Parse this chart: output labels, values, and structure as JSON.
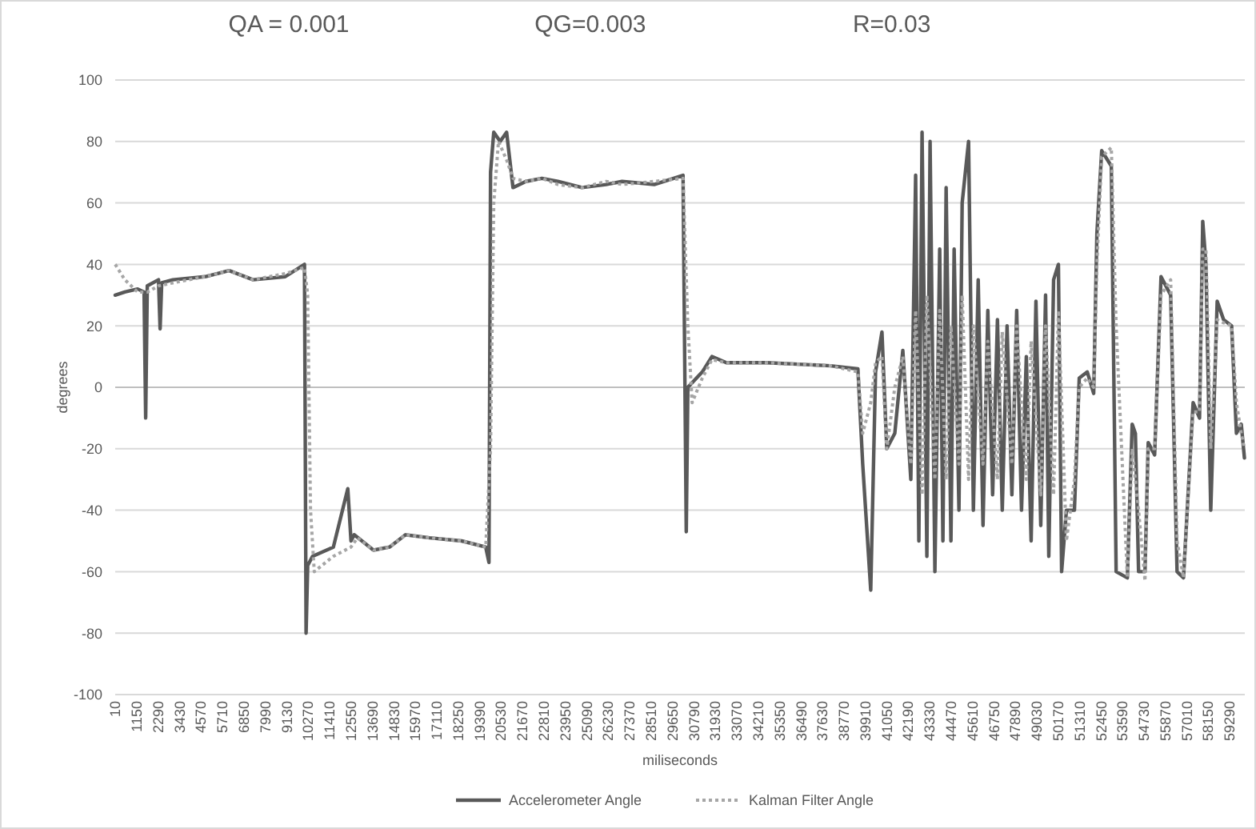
{
  "chart_data": {
    "type": "line",
    "annotations": [
      "QA = 0.001",
      "QG=0.003",
      "R=0.03"
    ],
    "xlabel": "miliseconds",
    "ylabel": "degrees",
    "xlim": [
      10,
      60100
    ],
    "ylim": [
      -100,
      100
    ],
    "xticks": [
      10,
      1150,
      2290,
      3430,
      4570,
      5710,
      6850,
      7990,
      9130,
      10270,
      11410,
      12550,
      13690,
      14830,
      15970,
      17110,
      18250,
      19390,
      20530,
      21670,
      22810,
      23950,
      25090,
      26230,
      27370,
      28510,
      29650,
      30790,
      31930,
      33070,
      34210,
      35350,
      36490,
      37630,
      38770,
      39910,
      41050,
      42190,
      43330,
      44470,
      45610,
      46750,
      47890,
      49030,
      50170,
      51310,
      52450,
      53590,
      54730,
      55870,
      57010,
      58150,
      59290
    ],
    "yticks": [
      -100,
      -80,
      -60,
      -40,
      -20,
      0,
      20,
      40,
      60,
      80,
      100
    ],
    "grid": "y",
    "legend": "bottom",
    "series": [
      {
        "name": "Accelerometer Angle",
        "color": "#595959",
        "line_style": "solid",
        "x": [
          10,
          522,
          1205,
          1546,
          1631,
          1717,
          2314,
          2399,
          2484,
          3082,
          4788,
          6068,
          7349,
          9055,
          10079,
          10164,
          10250,
          10506,
          11615,
          12383,
          12554,
          12724,
          13748,
          14602,
          15455,
          16735,
          18442,
          19721,
          19892,
          19977,
          20148,
          20489,
          20831,
          21172,
          21855,
          22708,
          23561,
          24841,
          26121,
          26974,
          28681,
          30217,
          30388,
          30473,
          31241,
          31753,
          32521,
          34654,
          38068,
          39518,
          39774,
          40201,
          40457,
          40798,
          41054,
          41481,
          41908,
          42334,
          42590,
          42761,
          42932,
          43188,
          43358,
          43614,
          43870,
          44041,
          44212,
          44468,
          44638,
          44894,
          45065,
          45406,
          45662,
          45918,
          46174,
          46430,
          46686,
          46942,
          47198,
          47454,
          47710,
          47966,
          48222,
          48478,
          48734,
          48990,
          49246,
          49502,
          49673,
          49929,
          50185,
          50355,
          50611,
          51037,
          51293,
          51720,
          52061,
          52232,
          52488,
          53000,
          53256,
          53853,
          54109,
          54280,
          54450,
          54791,
          54962,
          55303,
          55644,
          56156,
          56497,
          56839,
          57351,
          57692,
          57863,
          58033,
          58289,
          58631,
          58972,
          59399,
          59655,
          59911,
          60080
        ],
        "values": [
          30,
          31,
          32,
          31,
          -10,
          33,
          35,
          19,
          34,
          35,
          36,
          38,
          35,
          36,
          40,
          -80,
          -58,
          -55,
          -52,
          -33,
          -50,
          -48,
          -53,
          -52,
          -48,
          -49,
          -50,
          -52,
          -57,
          70,
          83,
          80,
          83,
          65,
          67,
          68,
          67,
          65,
          66,
          67,
          66,
          69,
          -47,
          0,
          5,
          10,
          8,
          8,
          7,
          6,
          -25,
          -66,
          5,
          18,
          -20,
          -15,
          12,
          -30,
          69,
          -50,
          83,
          -55,
          80,
          -60,
          45,
          -50,
          65,
          -50,
          45,
          -40,
          60,
          80,
          -40,
          35,
          -45,
          25,
          -35,
          22,
          -40,
          20,
          -35,
          25,
          -40,
          10,
          -50,
          28,
          -45,
          30,
          -55,
          35,
          40,
          -60,
          -40,
          -40,
          3,
          5,
          -2,
          50,
          77,
          72,
          -60,
          -62,
          -12,
          -15,
          -60,
          -60,
          -18,
          -22,
          36,
          30,
          -60,
          -62,
          -5,
          -10,
          54,
          40,
          -40,
          28,
          22,
          20,
          -15,
          -12,
          -23
        ]
      },
      {
        "name": "Kalman Filter Angle",
        "color": "#a6a6a6",
        "line_style": "dotted",
        "x": [
          10,
          522,
          1205,
          1717,
          2314,
          3082,
          4788,
          6068,
          7349,
          9055,
          10079,
          10250,
          10400,
          10600,
          11615,
          12554,
          12900,
          13748,
          14602,
          15455,
          16735,
          18442,
          19721,
          19977,
          20148,
          20400,
          20831,
          21172,
          21855,
          22708,
          23561,
          24841,
          26121,
          26974,
          28681,
          30217,
          30473,
          30700,
          31241,
          31753,
          32521,
          34654,
          38068,
          39518,
          39774,
          40201,
          40457,
          40798,
          41054,
          41481,
          41908,
          42334,
          42590,
          42932,
          43188,
          43614,
          43870,
          44212,
          44468,
          44894,
          45065,
          45406,
          45662,
          46174,
          46430,
          46942,
          47198,
          47710,
          47966,
          48478,
          48734,
          49246,
          49502,
          49929,
          50185,
          50611,
          51037,
          51293,
          51720,
          52061,
          52232,
          52488,
          53000,
          53256,
          53853,
          54109,
          54450,
          54791,
          54962,
          55303,
          55644,
          56156,
          56497,
          56839,
          57351,
          57692,
          57863,
          58033,
          58289,
          58631,
          58972,
          59399,
          59655,
          59911,
          60080
        ],
        "values": [
          40,
          35,
          31,
          31,
          33,
          34,
          36,
          38,
          35,
          37,
          39,
          30,
          -40,
          -60,
          -55,
          -52,
          -49,
          -53,
          -52,
          -48,
          -49,
          -50,
          -52,
          -20,
          60,
          80,
          74,
          68,
          67,
          68,
          66,
          65,
          67,
          66,
          67,
          68,
          20,
          -5,
          3,
          9,
          8,
          8,
          7,
          5,
          -15,
          -5,
          8,
          10,
          -20,
          0,
          10,
          -25,
          25,
          -35,
          30,
          -30,
          25,
          -30,
          20,
          -25,
          30,
          -30,
          20,
          -25,
          15,
          -30,
          18,
          -25,
          20,
          -30,
          15,
          -35,
          20,
          -35,
          25,
          -50,
          -30,
          0,
          3,
          0,
          40,
          75,
          78,
          20,
          -62,
          -20,
          -40,
          -63,
          -20,
          -20,
          30,
          35,
          -50,
          -62,
          -8,
          -8,
          45,
          45,
          -20,
          22,
          21,
          20,
          -5,
          -15,
          -20
        ]
      }
    ]
  }
}
